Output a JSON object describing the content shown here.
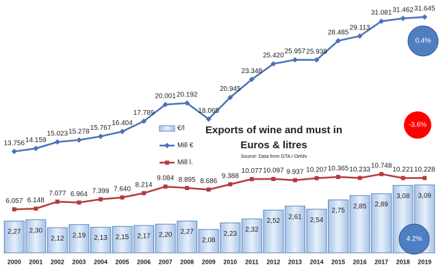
{
  "chart_data": {
    "type": "bar-line",
    "title": [
      "Exports of wine and must in",
      "Euros & litres"
    ],
    "subtitle": "Source: Data from GTA / OeMv",
    "categories": [
      "2000",
      "2001",
      "2002",
      "2003",
      "2004",
      "2005",
      "2006",
      "2007",
      "2008",
      "2009",
      "2010",
      "2011",
      "2012",
      "2013",
      "2014",
      "2015",
      "2016",
      "2017",
      "2018",
      "2019"
    ],
    "series": [
      {
        "name": "€/l",
        "kind": "bar",
        "color": "#c6daf2",
        "values": [
          2.27,
          2.3,
          2.12,
          2.19,
          2.13,
          2.15,
          2.17,
          2.2,
          2.27,
          2.08,
          2.23,
          2.32,
          2.52,
          2.61,
          2.54,
          2.75,
          2.85,
          2.89,
          3.08,
          3.09
        ],
        "value_labels": [
          "2,27",
          "2,30",
          "2,12",
          "2,19",
          "2,13",
          "2,15",
          "2,17",
          "2,20",
          "2,27",
          "2,08",
          "2,23",
          "2,32",
          "2,52",
          "2,61",
          "2,54",
          "2,75",
          "2,85",
          "2,89",
          "3,08",
          "3,09"
        ]
      },
      {
        "name": "Mill €",
        "kind": "line",
        "marker": "diamond",
        "color": "#4a72b8",
        "values": [
          13756,
          14159,
          15023,
          15278,
          15767,
          16404,
          17789,
          20001,
          20192,
          18065,
          20945,
          23348,
          25420,
          25957,
          25938,
          28485,
          29113,
          31081,
          31462,
          31645
        ],
        "value_labels": [
          "13.756",
          "14.159",
          "15.023",
          "15.278",
          "15.767",
          "16.404",
          "17.789",
          "20.001",
          "20.192",
          "18.065",
          "20.945",
          "23.348",
          "25.420",
          "25.957",
          "25.938",
          "28.485",
          "29.113",
          "31.081",
          "31.462",
          "31.645"
        ]
      },
      {
        "name": "Mill l.",
        "kind": "line",
        "marker": "square",
        "color": "#b53a3a",
        "values": [
          6057,
          6148,
          7077,
          6964,
          7399,
          7640,
          8214,
          9084,
          8895,
          8686,
          9388,
          10077,
          10097,
          9937,
          10207,
          10365,
          10233,
          10748,
          10221,
          10228
        ],
        "value_labels": [
          "6.057",
          "6.148",
          "7.077",
          "6.964",
          "7.399",
          "7.640",
          "8.214",
          "9.084",
          "8.895",
          "8.686",
          "9.388",
          "10.077",
          "10.097",
          "9.937",
          "10.207",
          "10.365",
          "10.233",
          "10.748",
          "10.221",
          "10.228"
        ]
      }
    ],
    "annotations": [
      {
        "text": "0.4%",
        "color": "#4f7fc0"
      },
      {
        "text": "-3.6%",
        "color": "#ff0000"
      },
      {
        "text": "4.2%",
        "color": "#4f7fc0"
      }
    ]
  }
}
